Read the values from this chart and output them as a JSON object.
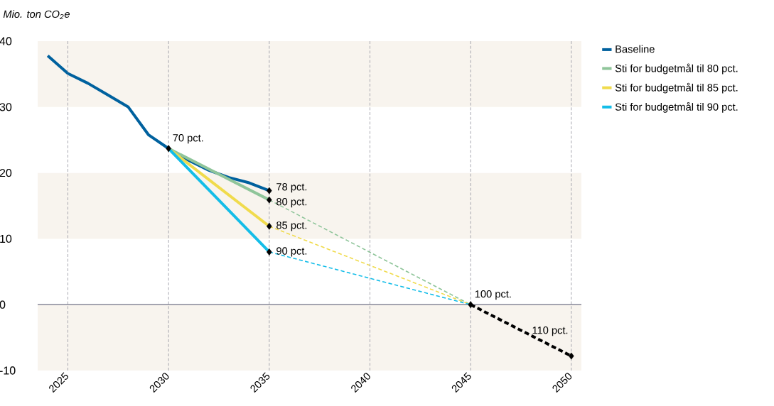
{
  "chart_data": {
    "type": "line",
    "ylabel": "Mio. ton CO$_{2}$e",
    "xlim": [
      2023.5,
      2050.5
    ],
    "xticks": [
      2025,
      2030,
      2035,
      2040,
      2045,
      2050
    ],
    "ylim": [
      -10,
      40
    ],
    "yticks": [
      -10,
      0,
      10,
      20,
      30,
      40
    ],
    "grid": "x",
    "legend": "top right",
    "bands": [
      {
        "axis": "y",
        "from": 30,
        "to": 40,
        "color": "#f8f4ee"
      },
      {
        "axis": "y",
        "from": 10,
        "to": 20,
        "color": "#f8f4ee"
      },
      {
        "axis": "y",
        "from": -10,
        "to": 0,
        "color": "#f8f4ee"
      }
    ],
    "ref_lines": [
      {
        "axis": "y",
        "value": 0,
        "color": "#8a8a99"
      }
    ],
    "series": [
      {
        "name": "Baseline",
        "color": "#00619e",
        "line_style": "solid",
        "x": [
          2024,
          2025,
          2026,
          2027,
          2028,
          2029,
          2030,
          2031,
          2032,
          2033,
          2034,
          2035
        ],
        "values": [
          37.8,
          35.1,
          33.6,
          31.8,
          30.0,
          25.8,
          23.7,
          21.9,
          20.4,
          19.3,
          18.5,
          17.3
        ]
      },
      {
        "name": "Sti for budgetmål til 80 pct.",
        "color": "#8fc59a",
        "line_style": "solid",
        "x": [
          2030,
          2035
        ],
        "values": [
          23.7,
          15.9
        ]
      },
      {
        "name": "Sti for budgetmål til 85 pct.",
        "color": "#f0db4c",
        "line_style": "solid",
        "x": [
          2030,
          2035
        ],
        "values": [
          23.7,
          11.9
        ]
      },
      {
        "name": "Sti for budgetmål til 90 pct.",
        "color": "#14bde8",
        "line_style": "solid",
        "x": [
          2030,
          2035
        ],
        "values": [
          23.7,
          8.0
        ]
      },
      {
        "color": "#8fc59a",
        "line_style": "dashed",
        "x": [
          2035,
          2045
        ],
        "values": [
          15.9,
          0
        ]
      },
      {
        "color": "#f0db4c",
        "line_style": "dashed",
        "x": [
          2035,
          2045
        ],
        "values": [
          11.9,
          0
        ]
      },
      {
        "color": "#14bde8",
        "line_style": "dashed",
        "x": [
          2035,
          2045
        ],
        "values": [
          8.0,
          0
        ]
      },
      {
        "color": "#000000",
        "line_style": "dashed",
        "x": [
          2045,
          2050
        ],
        "values": [
          0,
          -7.8
        ]
      },
      {
        "type": "scatter",
        "color": "#000000",
        "marker": "diamond",
        "x": [
          2030,
          2035,
          2035,
          2035,
          2035,
          2045,
          2050
        ],
        "values": [
          23.7,
          17.3,
          15.9,
          11.9,
          8.0,
          0,
          -7.8
        ]
      }
    ],
    "annotations": [
      {
        "text": "70 pct.",
        "x": 2030,
        "y": 23.7
      },
      {
        "text": "78 pct.",
        "x": 2035,
        "y": 17.3
      },
      {
        "text": "80 pct.",
        "x": 2035,
        "y": 15.9
      },
      {
        "text": "85 pct.",
        "x": 2035,
        "y": 11.9
      },
      {
        "text": "90 pct.",
        "x": 2035,
        "y": 8.0
      },
      {
        "text": "100 pct.",
        "x": 2045,
        "y": 0
      },
      {
        "text": "110 pct.",
        "x": 2050,
        "y": -7.8
      }
    ]
  }
}
